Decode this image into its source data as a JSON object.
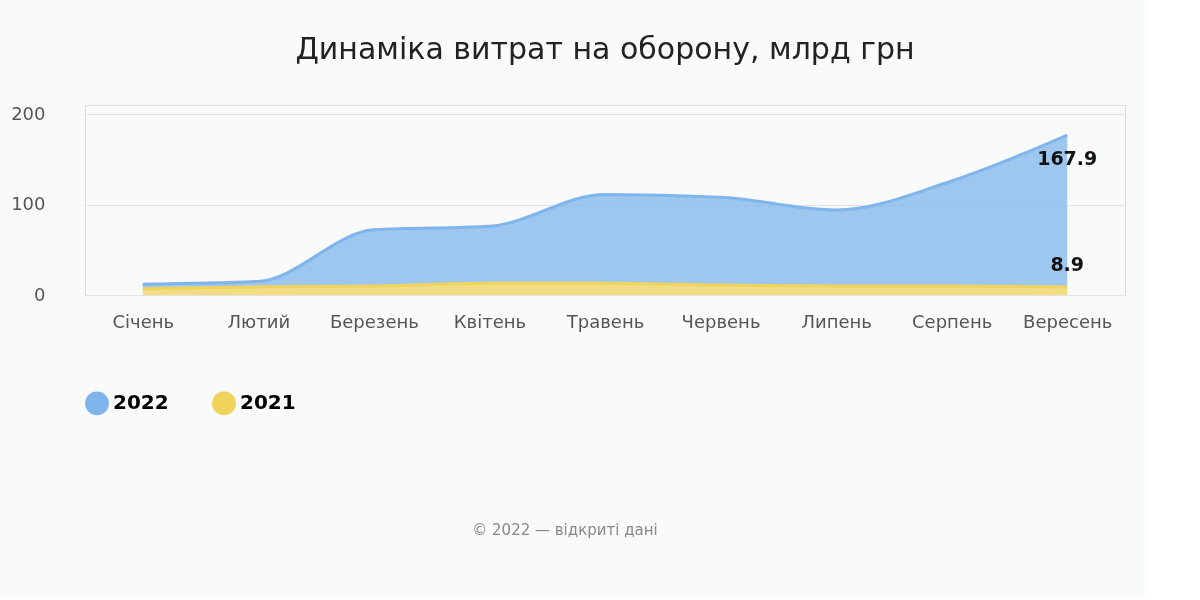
{
  "chart_data": {
    "type": "area",
    "title": "Динаміка витрат на оборону, млрд грн",
    "categories": [
      "Січень",
      "Лютий",
      "Березень",
      "Квітень",
      "Травень",
      "Червень",
      "Липень",
      "Серпень",
      "Вересень"
    ],
    "stacked": true,
    "series": [
      {
        "name": "2021",
        "color": "#f0d35a",
        "values": [
          7,
          9,
          10,
          13,
          13,
          11,
          10,
          10,
          8.9
        ],
        "value_labels": [
          null,
          null,
          null,
          null,
          null,
          null,
          null,
          null,
          "8.9"
        ]
      },
      {
        "name": "2022",
        "color": "#7fb5ec",
        "values": [
          5,
          6,
          62,
          63,
          98,
          97,
          84,
          116,
          167.9
        ],
        "value_labels": [
          null,
          null,
          null,
          null,
          null,
          null,
          null,
          null,
          "167.9"
        ]
      }
    ],
    "ylim": [
      0,
      210
    ],
    "yticks": [
      0,
      100,
      200
    ],
    "grid": "y",
    "legend": "bottom",
    "annotations": [
      "© 2022 — відкриті дані"
    ]
  }
}
